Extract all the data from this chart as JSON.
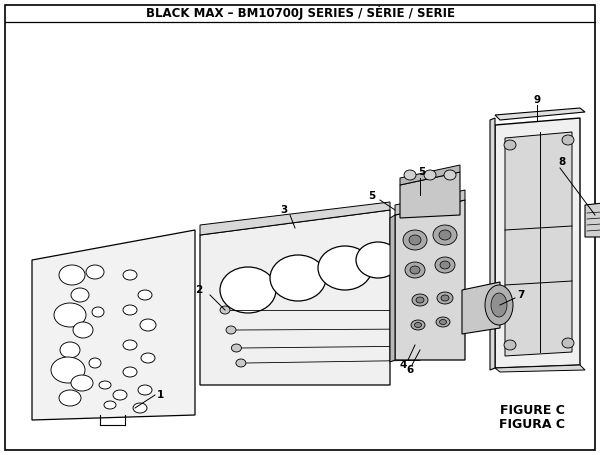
{
  "title": "BLACK MAX – BM10700J SERIES / SÉRIE / SERIE",
  "title_fontsize": 8.5,
  "title_fontweight": "bold",
  "bg_color": "#ffffff",
  "border_color": "#000000",
  "figure_label1": "FIGURE C",
  "figure_label2": "FIGURA C",
  "figure_label_fontsize": 9,
  "figure_label_fontweight": "bold",
  "line_color": "#000000",
  "part_label_fontsize": 7.5
}
